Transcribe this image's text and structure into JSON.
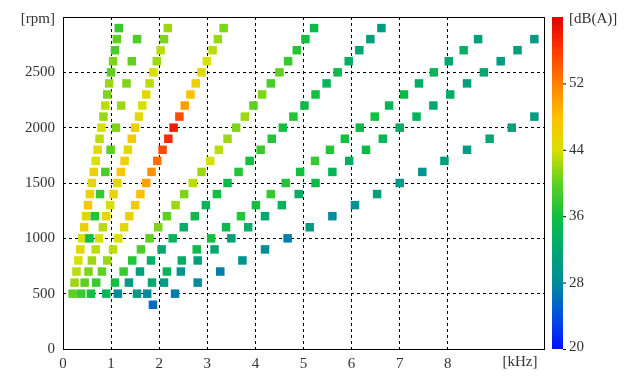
{
  "chart_data": {
    "type": "scatter",
    "xlabel": "[kHz]",
    "ylabel": "[rpm]",
    "xlim": [
      0,
      10
    ],
    "xticks": [
      0,
      1,
      2,
      3,
      4,
      5,
      6,
      7,
      8
    ],
    "ylim": [
      0,
      3000
    ],
    "yticks": [
      0,
      500,
      1000,
      1500,
      2000,
      2500
    ],
    "grid": true,
    "marker": "square",
    "colorbar": {
      "label": "[dB(A)]",
      "range": [
        20,
        60
      ],
      "ticks": [
        20,
        28,
        36,
        44,
        52
      ]
    },
    "cells": [
      [
        1.87,
        400,
        26
      ],
      [
        2.33,
        500,
        27
      ],
      [
        2.8,
        600,
        28
      ],
      [
        3.27,
        700,
        27
      ],
      [
        3.73,
        800,
        29
      ],
      [
        4.2,
        900,
        28
      ],
      [
        4.67,
        1000,
        27
      ],
      [
        5.13,
        1100,
        30
      ],
      [
        5.6,
        1200,
        28
      ],
      [
        6.07,
        1300,
        29
      ],
      [
        6.53,
        1400,
        31
      ],
      [
        7.0,
        1500,
        30
      ],
      [
        7.47,
        1600,
        29
      ],
      [
        7.93,
        1700,
        31
      ],
      [
        8.4,
        1800,
        30
      ],
      [
        8.87,
        1900,
        32
      ],
      [
        9.33,
        2000,
        31
      ],
      [
        9.8,
        2100,
        30
      ],
      [
        1.75,
        500,
        28
      ],
      [
        2.1,
        600,
        30
      ],
      [
        2.45,
        700,
        29
      ],
      [
        2.8,
        800,
        31
      ],
      [
        3.15,
        900,
        32
      ],
      [
        3.5,
        1000,
        31
      ],
      [
        3.85,
        1100,
        33
      ],
      [
        4.2,
        1200,
        32
      ],
      [
        4.55,
        1300,
        34
      ],
      [
        4.9,
        1400,
        33
      ],
      [
        5.25,
        1500,
        35
      ],
      [
        5.6,
        1600,
        34
      ],
      [
        5.95,
        1700,
        33
      ],
      [
        6.3,
        1800,
        35
      ],
      [
        6.65,
        1900,
        34
      ],
      [
        7.0,
        2000,
        33
      ],
      [
        7.35,
        2100,
        34
      ],
      [
        7.7,
        2200,
        32
      ],
      [
        8.05,
        2300,
        33
      ],
      [
        8.4,
        2400,
        31
      ],
      [
        8.75,
        2500,
        32
      ],
      [
        9.1,
        2600,
        30
      ],
      [
        9.45,
        2700,
        31
      ],
      [
        9.8,
        2800,
        30
      ],
      [
        1.54,
        500,
        30
      ],
      [
        1.85,
        600,
        32
      ],
      [
        2.16,
        700,
        34
      ],
      [
        2.47,
        800,
        33
      ],
      [
        2.78,
        900,
        35
      ],
      [
        3.08,
        1000,
        36
      ],
      [
        3.39,
        1100,
        35
      ],
      [
        3.7,
        1200,
        37
      ],
      [
        4.01,
        1300,
        36
      ],
      [
        4.32,
        1400,
        38
      ],
      [
        4.63,
        1500,
        37
      ],
      [
        4.93,
        1600,
        36
      ],
      [
        5.24,
        1700,
        38
      ],
      [
        5.55,
        1800,
        37
      ],
      [
        5.86,
        1900,
        36
      ],
      [
        6.17,
        2000,
        35
      ],
      [
        6.48,
        2100,
        36
      ],
      [
        6.78,
        2200,
        34
      ],
      [
        7.09,
        2300,
        35
      ],
      [
        7.4,
        2400,
        33
      ],
      [
        7.71,
        2500,
        34
      ],
      [
        8.02,
        2600,
        32
      ],
      [
        8.33,
        2700,
        33
      ],
      [
        8.63,
        2800,
        31
      ],
      [
        1.14,
        500,
        28
      ],
      [
        1.37,
        600,
        30
      ],
      [
        1.6,
        700,
        31
      ],
      [
        1.83,
        800,
        33
      ],
      [
        2.05,
        900,
        32
      ],
      [
        2.28,
        1000,
        34
      ],
      [
        2.51,
        1100,
        33
      ],
      [
        2.74,
        1200,
        35
      ],
      [
        2.97,
        1300,
        34
      ],
      [
        3.2,
        1400,
        36
      ],
      [
        3.42,
        1500,
        35
      ],
      [
        3.65,
        1600,
        37
      ],
      [
        3.88,
        1700,
        36
      ],
      [
        4.11,
        1800,
        38
      ],
      [
        4.34,
        1900,
        37
      ],
      [
        4.57,
        2000,
        36
      ],
      [
        4.79,
        2100,
        37
      ],
      [
        5.02,
        2200,
        35
      ],
      [
        5.25,
        2300,
        36
      ],
      [
        5.48,
        2400,
        34
      ],
      [
        5.71,
        2500,
        35
      ],
      [
        5.94,
        2600,
        33
      ],
      [
        6.16,
        2700,
        32
      ],
      [
        6.39,
        2800,
        31
      ],
      [
        6.62,
        2900,
        30
      ],
      [
        0.9,
        500,
        34
      ],
      [
        1.08,
        600,
        36
      ],
      [
        1.26,
        700,
        38
      ],
      [
        1.44,
        800,
        37
      ],
      [
        1.62,
        900,
        39
      ],
      [
        1.8,
        1000,
        40
      ],
      [
        1.98,
        1100,
        41
      ],
      [
        2.16,
        1200,
        40
      ],
      [
        2.34,
        1300,
        42
      ],
      [
        2.52,
        1400,
        41
      ],
      [
        2.7,
        1500,
        43
      ],
      [
        2.88,
        1600,
        42
      ],
      [
        3.06,
        1700,
        44
      ],
      [
        3.24,
        1800,
        43
      ],
      [
        3.42,
        1900,
        42
      ],
      [
        3.6,
        2000,
        41
      ],
      [
        3.78,
        2100,
        42
      ],
      [
        3.96,
        2200,
        40
      ],
      [
        4.14,
        2300,
        41
      ],
      [
        4.32,
        2400,
        39
      ],
      [
        4.5,
        2500,
        40
      ],
      [
        4.68,
        2600,
        38
      ],
      [
        4.86,
        2700,
        37
      ],
      [
        5.04,
        2800,
        36
      ],
      [
        5.22,
        2900,
        35
      ],
      [
        0.58,
        500,
        36
      ],
      [
        0.69,
        600,
        38
      ],
      [
        0.81,
        700,
        40
      ],
      [
        0.92,
        800,
        42
      ],
      [
        1.04,
        900,
        43
      ],
      [
        1.15,
        1000,
        44
      ],
      [
        1.27,
        1100,
        45
      ],
      [
        1.38,
        1200,
        46
      ],
      [
        1.5,
        1300,
        47
      ],
      [
        1.61,
        1400,
        48
      ],
      [
        1.73,
        1500,
        50
      ],
      [
        1.84,
        1600,
        51
      ],
      [
        1.96,
        1700,
        53
      ],
      [
        2.07,
        1800,
        55
      ],
      [
        2.19,
        1900,
        57
      ],
      [
        2.3,
        2000,
        58
      ],
      [
        2.42,
        2100,
        55
      ],
      [
        2.53,
        2200,
        50
      ],
      [
        2.65,
        2300,
        48
      ],
      [
        2.76,
        2400,
        46
      ],
      [
        2.88,
        2500,
        45
      ],
      [
        2.99,
        2600,
        44
      ],
      [
        3.11,
        2700,
        43
      ],
      [
        3.22,
        2800,
        42
      ],
      [
        3.34,
        2900,
        41
      ],
      [
        0.38,
        500,
        38
      ],
      [
        0.45,
        600,
        40
      ],
      [
        0.53,
        700,
        41
      ],
      [
        0.6,
        800,
        42
      ],
      [
        0.68,
        900,
        43
      ],
      [
        0.75,
        1000,
        44
      ],
      [
        0.83,
        1100,
        43
      ],
      [
        0.9,
        1200,
        45
      ],
      [
        0.98,
        1300,
        44
      ],
      [
        1.05,
        1400,
        46
      ],
      [
        1.13,
        1500,
        45
      ],
      [
        1.2,
        1600,
        47
      ],
      [
        1.28,
        1700,
        46
      ],
      [
        1.35,
        1800,
        45
      ],
      [
        1.43,
        1900,
        47
      ],
      [
        1.5,
        2000,
        46
      ],
      [
        1.58,
        2100,
        45
      ],
      [
        1.65,
        2200,
        44
      ],
      [
        1.73,
        2300,
        45
      ],
      [
        1.8,
        2400,
        43
      ],
      [
        1.88,
        2500,
        44
      ],
      [
        1.95,
        2600,
        42
      ],
      [
        2.03,
        2700,
        43
      ],
      [
        2.1,
        2800,
        41
      ],
      [
        2.18,
        2900,
        42
      ],
      [
        0.2,
        500,
        40
      ],
      [
        0.24,
        600,
        42
      ],
      [
        0.28,
        700,
        43
      ],
      [
        0.32,
        800,
        44
      ],
      [
        0.36,
        900,
        45
      ],
      [
        0.4,
        1000,
        44
      ],
      [
        0.44,
        1100,
        46
      ],
      [
        0.48,
        1200,
        45
      ],
      [
        0.52,
        1300,
        47
      ],
      [
        0.56,
        1400,
        46
      ],
      [
        0.6,
        1500,
        45
      ],
      [
        0.64,
        1600,
        46
      ],
      [
        0.68,
        1700,
        44
      ],
      [
        0.72,
        1800,
        45
      ],
      [
        0.76,
        1900,
        43
      ],
      [
        0.8,
        2000,
        44
      ],
      [
        0.84,
        2100,
        42
      ],
      [
        0.88,
        2200,
        43
      ],
      [
        0.92,
        2300,
        41
      ],
      [
        0.96,
        2400,
        42
      ],
      [
        1.0,
        2500,
        40
      ],
      [
        1.04,
        2600,
        41
      ],
      [
        1.08,
        2700,
        39
      ],
      [
        1.12,
        2800,
        40
      ],
      [
        1.16,
        2900,
        38
      ],
      [
        0.55,
        1000,
        36
      ],
      [
        0.66,
        1200,
        37
      ],
      [
        0.77,
        1400,
        38
      ],
      [
        0.88,
        1600,
        39
      ],
      [
        0.99,
        1800,
        40
      ],
      [
        1.1,
        2000,
        41
      ],
      [
        1.21,
        2200,
        42
      ],
      [
        1.32,
        2400,
        41
      ],
      [
        1.43,
        2600,
        40
      ],
      [
        1.54,
        2800,
        39
      ]
    ]
  }
}
